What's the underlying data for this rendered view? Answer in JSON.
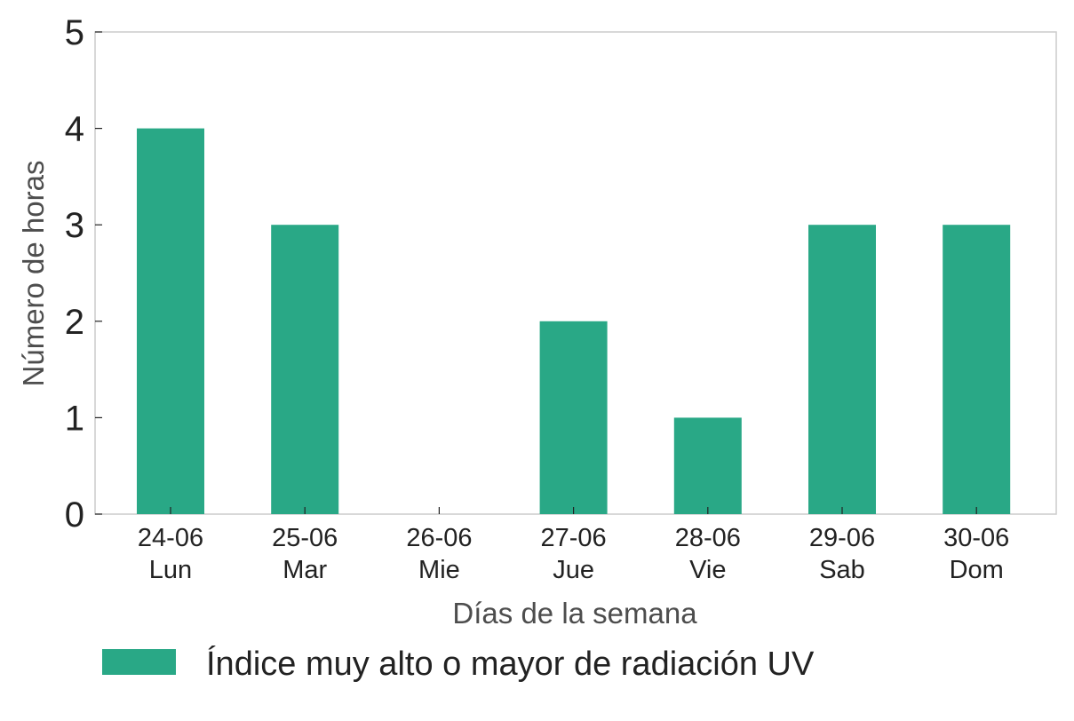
{
  "chart_data": {
    "type": "bar",
    "categories": [
      [
        "24-06",
        "Lun"
      ],
      [
        "25-06",
        "Mar"
      ],
      [
        "26-06",
        "Mie"
      ],
      [
        "27-06",
        "Jue"
      ],
      [
        "28-06",
        "Vie"
      ],
      [
        "29-06",
        "Sab"
      ],
      [
        "30-06",
        "Dom"
      ]
    ],
    "series": [
      {
        "name": "Índice muy alto o mayor de radiación UV",
        "values": [
          4,
          3,
          0,
          2,
          1,
          3,
          3
        ],
        "color": "#29a886"
      }
    ],
    "xlabel": "Días de la semana",
    "ylabel": "Número de horas",
    "ylim": [
      0,
      5
    ],
    "yticks": [
      "0",
      "1",
      "2",
      "3",
      "4",
      "5"
    ],
    "grid": false,
    "legend_position": "bottom-left",
    "colors": {
      "axis_frame": "#cccccc",
      "tick_text": "#222222",
      "axis_label": "#4d4d4d",
      "legend_text": "#222222"
    }
  }
}
